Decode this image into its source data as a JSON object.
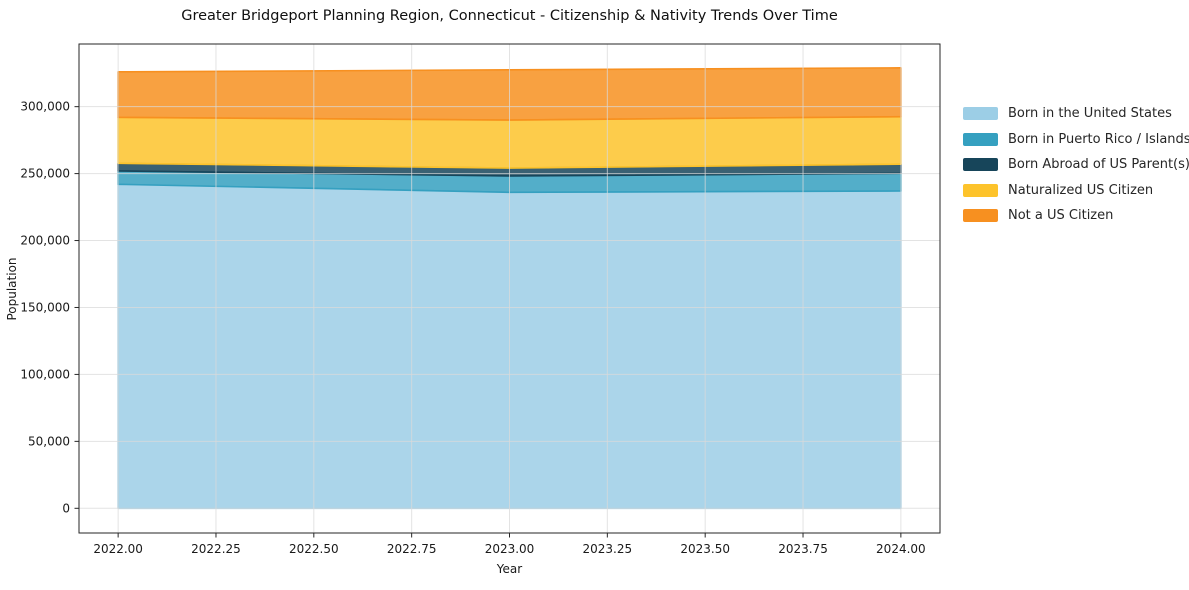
{
  "chart_data": {
    "type": "area",
    "stacked": true,
    "title": "Greater Bridgeport Planning Region, Connecticut - Citizenship & Nativity Trends Over Time",
    "xlabel": "Year",
    "ylabel": "Population",
    "x": [
      2022,
      2023,
      2024
    ],
    "series": [
      {
        "name": "Born in the United States",
        "color": "#9ccee6",
        "values": [
          242000,
          236000,
          237000
        ]
      },
      {
        "name": "Born in Puerto Rico / Islands",
        "color": "#35a0c0",
        "values": [
          10000,
          12200,
          13200
        ]
      },
      {
        "name": "Born Abroad of US Parent(s)",
        "color": "#17455a",
        "values": [
          5700,
          5900,
          6800
        ]
      },
      {
        "name": "Naturalized US Citizen",
        "color": "#fdc32b",
        "values": [
          34300,
          35900,
          35500
        ]
      },
      {
        "name": "Not a US Citizen",
        "color": "#f79020",
        "values": [
          34000,
          37500,
          36500
        ]
      }
    ],
    "totals": [
      326000,
      327500,
      329000
    ],
    "xticks": {
      "values": [
        2022.0,
        2022.25,
        2022.5,
        2022.75,
        2023.0,
        2023.25,
        2023.5,
        2023.75,
        2024.0
      ],
      "labels": [
        "2022.00",
        "2022.25",
        "2022.50",
        "2022.75",
        "2023.00",
        "2023.25",
        "2023.50",
        "2023.75",
        "2024.00"
      ]
    },
    "yticks": {
      "values": [
        0,
        50000,
        100000,
        150000,
        200000,
        250000,
        300000
      ],
      "labels": [
        "0",
        "50,000",
        "100,000",
        "150,000",
        "200,000",
        "250,000",
        "300,000"
      ]
    },
    "xlim": [
      2021.9,
      2024.1
    ],
    "ylim": [
      -18450,
      346800
    ],
    "grid": true,
    "legend_position": "right",
    "legend_frame": false
  }
}
